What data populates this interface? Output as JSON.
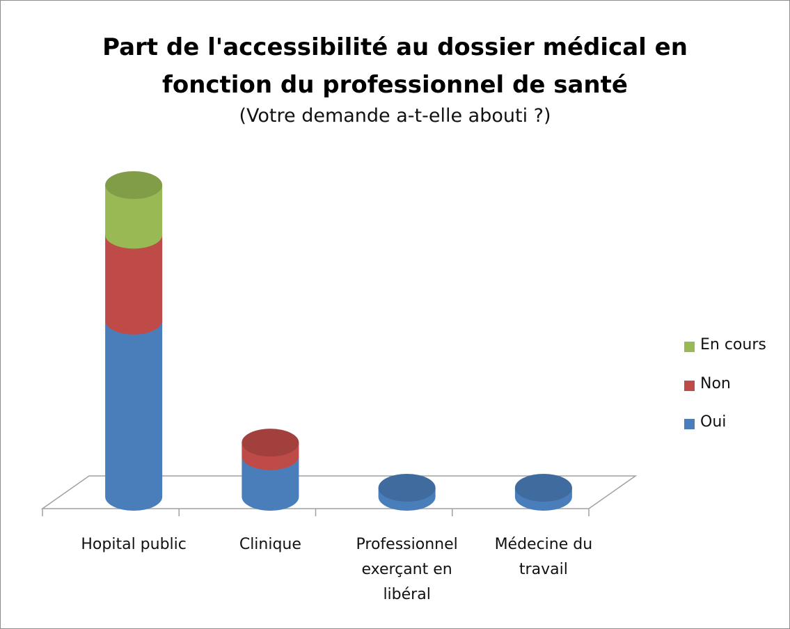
{
  "chart_data": {
    "type": "bar",
    "stacked": true,
    "title": "Part de l'accessibilité au dossier médical en fonction du professionnel de santé",
    "subtitle": "(Votre demande a-t-elle abouti ?)",
    "categories": [
      "Hopital public",
      "Clinique",
      "Professionnel exerçant en libéral",
      "Médecine du travail"
    ],
    "series": [
      {
        "name": "Oui",
        "color": "#4a7ebb",
        "values": [
          39,
          9,
          2,
          2
        ]
      },
      {
        "name": "Non",
        "color": "#be4b48",
        "values": [
          19,
          3,
          0,
          0
        ]
      },
      {
        "name": "En cours",
        "color": "#98b954",
        "values": [
          11,
          0,
          0,
          0
        ]
      }
    ]
  }
}
